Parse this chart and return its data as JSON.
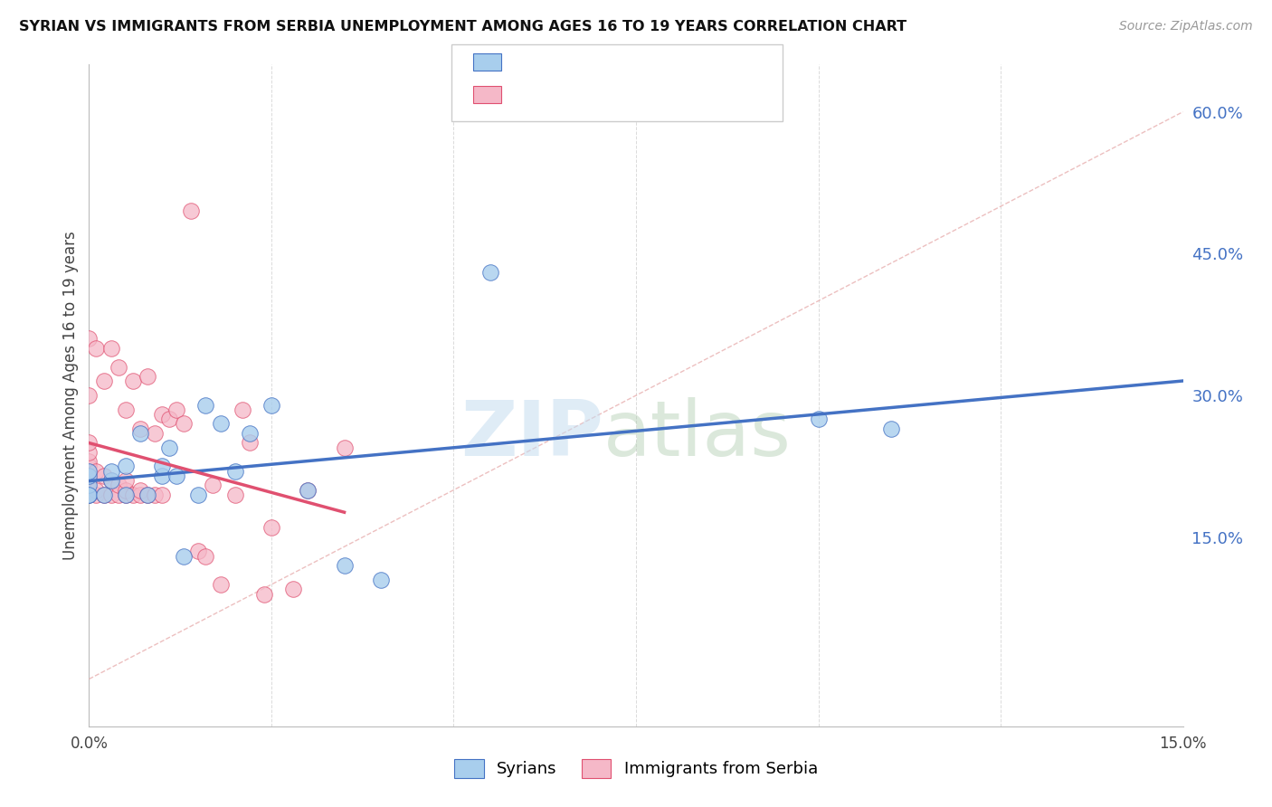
{
  "title": "SYRIAN VS IMMIGRANTS FROM SERBIA UNEMPLOYMENT AMONG AGES 16 TO 19 YEARS CORRELATION CHART",
  "source": "Source: ZipAtlas.com",
  "ylabel": "Unemployment Among Ages 16 to 19 years",
  "xlim": [
    0.0,
    0.15
  ],
  "ylim": [
    -0.05,
    0.65
  ],
  "xticks": [
    0.0,
    0.025,
    0.05,
    0.075,
    0.1,
    0.125,
    0.15
  ],
  "xticklabels": [
    "0.0%",
    "",
    "",
    "",
    "",
    "",
    "15.0%"
  ],
  "yticks_right": [
    0.15,
    0.3,
    0.45,
    0.6
  ],
  "ytick_right_labels": [
    "15.0%",
    "30.0%",
    "45.0%",
    "60.0%"
  ],
  "color_syrian": "#A8CEED",
  "color_serbia": "#F5B8C8",
  "color_line_syrian": "#4472C4",
  "color_line_serbia": "#E05070",
  "color_diag": "#E8B0B0",
  "watermark_zip": "ZIP",
  "watermark_atlas": "atlas",
  "syrians_x": [
    0.0,
    0.0,
    0.0,
    0.0,
    0.0,
    0.002,
    0.003,
    0.003,
    0.005,
    0.005,
    0.007,
    0.008,
    0.01,
    0.01,
    0.011,
    0.012,
    0.013,
    0.015,
    0.016,
    0.018,
    0.02,
    0.022,
    0.025,
    0.03,
    0.035,
    0.04,
    0.055,
    0.1,
    0.11
  ],
  "syrians_y": [
    0.195,
    0.205,
    0.215,
    0.22,
    0.195,
    0.195,
    0.21,
    0.22,
    0.195,
    0.225,
    0.26,
    0.195,
    0.215,
    0.225,
    0.245,
    0.215,
    0.13,
    0.195,
    0.29,
    0.27,
    0.22,
    0.26,
    0.29,
    0.2,
    0.12,
    0.105,
    0.43,
    0.275,
    0.265
  ],
  "serbia_x": [
    0.0,
    0.0,
    0.0,
    0.0,
    0.0,
    0.0,
    0.0,
    0.0,
    0.0,
    0.0,
    0.001,
    0.001,
    0.001,
    0.001,
    0.002,
    0.002,
    0.002,
    0.003,
    0.003,
    0.003,
    0.004,
    0.004,
    0.004,
    0.005,
    0.005,
    0.005,
    0.005,
    0.006,
    0.006,
    0.007,
    0.007,
    0.007,
    0.008,
    0.008,
    0.009,
    0.009,
    0.01,
    0.01,
    0.011,
    0.012,
    0.013,
    0.014,
    0.015,
    0.016,
    0.017,
    0.018,
    0.02,
    0.021,
    0.022,
    0.024,
    0.025,
    0.028,
    0.03,
    0.035
  ],
  "serbia_y": [
    0.195,
    0.2,
    0.21,
    0.22,
    0.225,
    0.23,
    0.24,
    0.25,
    0.3,
    0.36,
    0.195,
    0.2,
    0.22,
    0.35,
    0.195,
    0.215,
    0.315,
    0.195,
    0.21,
    0.35,
    0.195,
    0.205,
    0.33,
    0.195,
    0.2,
    0.21,
    0.285,
    0.195,
    0.315,
    0.195,
    0.2,
    0.265,
    0.195,
    0.32,
    0.195,
    0.26,
    0.195,
    0.28,
    0.275,
    0.285,
    0.27,
    0.495,
    0.135,
    0.13,
    0.205,
    0.1,
    0.195,
    0.285,
    0.25,
    0.09,
    0.16,
    0.095,
    0.2,
    0.245
  ],
  "background_color": "#FFFFFF",
  "grid_color": "#CCCCCC"
}
